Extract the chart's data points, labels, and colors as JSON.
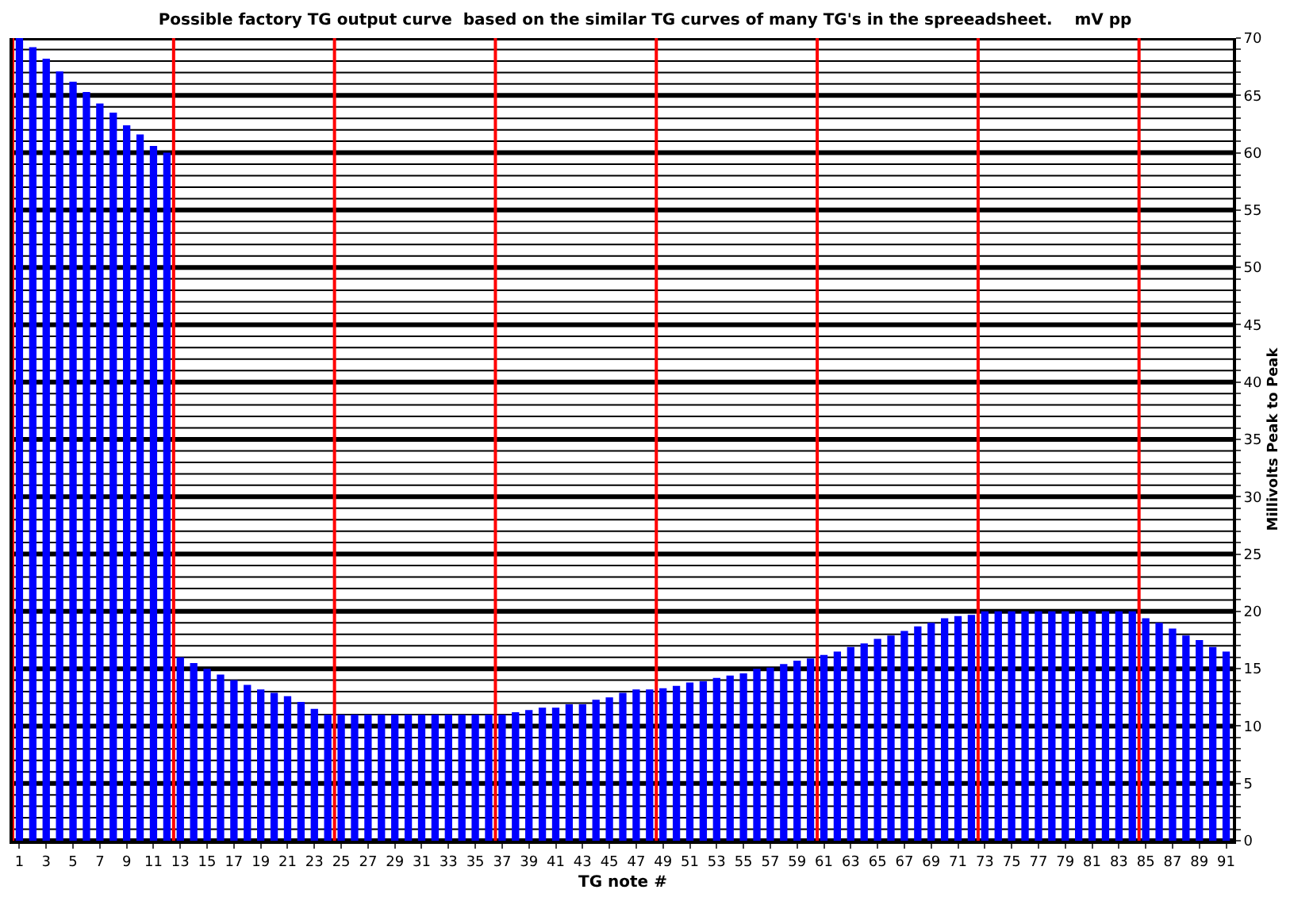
{
  "chart_data": {
    "type": "bar",
    "title": "Possible factory TG output curve  based on the similar TG curves of many TG's in the spreeadsheet.    mV pp",
    "xlabel": "TG note #",
    "ylabel": "Millivolts Peak to Peak",
    "x": [
      1,
      2,
      3,
      4,
      5,
      6,
      7,
      8,
      9,
      10,
      11,
      12,
      13,
      14,
      15,
      16,
      17,
      18,
      19,
      20,
      21,
      22,
      23,
      24,
      25,
      26,
      27,
      28,
      29,
      30,
      31,
      32,
      33,
      34,
      35,
      36,
      37,
      38,
      39,
      40,
      41,
      42,
      43,
      44,
      45,
      46,
      47,
      48,
      49,
      50,
      51,
      52,
      53,
      54,
      55,
      56,
      57,
      58,
      59,
      60,
      61,
      62,
      63,
      64,
      65,
      66,
      67,
      68,
      69,
      70,
      71,
      72,
      73,
      74,
      75,
      76,
      77,
      78,
      79,
      80,
      81,
      82,
      83,
      84,
      85,
      86,
      87,
      88,
      89,
      90,
      91
    ],
    "series": [
      {
        "color": "#0000ff",
        "values": [
          70,
          69.2,
          68.2,
          67.1,
          66.2,
          65.3,
          64.3,
          63.5,
          62.4,
          61.6,
          60.6,
          60,
          16,
          15.5,
          15,
          14.5,
          14,
          13.6,
          13.2,
          12.9,
          12.6,
          12.1,
          11.5,
          11,
          11,
          11,
          11,
          11,
          11,
          11,
          11,
          11,
          11,
          11,
          11,
          11,
          11,
          11.2,
          11.4,
          11.6,
          11.6,
          11.9,
          11.9,
          12.3,
          12.5,
          12.9,
          13.2,
          13.2,
          13.3,
          13.5,
          13.8,
          13.9,
          14.2,
          14.4,
          14.6,
          15,
          15.1,
          15.4,
          15.7,
          15.9,
          16.2,
          16.5,
          16.9,
          17.2,
          17.6,
          17.9,
          18.3,
          18.7,
          19,
          19.4,
          19.6,
          19.7,
          20,
          20,
          20,
          20,
          20,
          20,
          20,
          20,
          20,
          20,
          20,
          20,
          19.4,
          19,
          18.5,
          17.9,
          17.5,
          16.9,
          16.5
        ]
      }
    ],
    "xlim": [
      0.5,
      91.5
    ],
    "xticks": [
      1,
      3,
      5,
      7,
      9,
      11,
      13,
      15,
      17,
      19,
      21,
      23,
      25,
      27,
      29,
      31,
      33,
      35,
      37,
      39,
      41,
      43,
      45,
      47,
      49,
      51,
      53,
      55,
      57,
      59,
      61,
      63,
      65,
      67,
      69,
      71,
      73,
      75,
      77,
      79,
      81,
      83,
      85,
      87,
      89,
      91
    ],
    "ylim": [
      0,
      70
    ],
    "yticks": [
      0,
      {
        "value": 1,
        "label": null
      },
      {
        "value": 2,
        "label": null
      },
      {
        "value": 3,
        "label": null
      },
      {
        "value": 4,
        "label": null
      },
      5,
      {
        "value": 6,
        "label": null
      },
      {
        "value": 7,
        "label": null
      },
      {
        "value": 8,
        "label": null
      },
      {
        "value": 9,
        "label": null
      },
      10,
      {
        "value": 11,
        "label": null
      },
      {
        "value": 12,
        "label": null
      },
      {
        "value": 13,
        "label": null
      },
      {
        "value": 14,
        "label": null
      },
      15,
      {
        "value": 16,
        "label": null
      },
      {
        "value": 17,
        "label": null
      },
      {
        "value": 18,
        "label": null
      },
      {
        "value": 19,
        "label": null
      },
      20,
      {
        "value": 21,
        "label": null
      },
      {
        "value": 22,
        "label": null
      },
      {
        "value": 23,
        "label": null
      },
      {
        "value": 24,
        "label": null
      },
      25,
      {
        "value": 26,
        "label": null
      },
      {
        "value": 27,
        "label": null
      },
      {
        "value": 28,
        "label": null
      },
      {
        "value": 29,
        "label": null
      },
      30,
      {
        "value": 31,
        "label": null
      },
      {
        "value": 32,
        "label": null
      },
      {
        "value": 33,
        "label": null
      },
      {
        "value": 34,
        "label": null
      },
      35,
      {
        "value": 36,
        "label": null
      },
      {
        "value": 37,
        "label": null
      },
      {
        "value": 38,
        "label": null
      },
      {
        "value": 39,
        "label": null
      },
      40,
      {
        "value": 41,
        "label": null
      },
      {
        "value": 42,
        "label": null
      },
      {
        "value": 43,
        "label": null
      },
      {
        "value": 44,
        "label": null
      },
      45,
      {
        "value": 46,
        "label": null
      },
      {
        "value": 47,
        "label": null
      },
      {
        "value": 48,
        "label": null
      },
      {
        "value": 49,
        "label": null
      },
      50,
      {
        "value": 51,
        "label": null
      },
      {
        "value": 52,
        "label": null
      },
      {
        "value": 53,
        "label": null
      },
      {
        "value": 54,
        "label": null
      },
      55,
      {
        "value": 56,
        "label": null
      },
      {
        "value": 57,
        "label": null
      },
      {
        "value": 58,
        "label": null
      },
      {
        "value": 59,
        "label": null
      },
      60,
      {
        "value": 61,
        "label": null
      },
      {
        "value": 62,
        "label": null
      },
      {
        "value": 63,
        "label": null
      },
      {
        "value": 64,
        "label": null
      },
      65,
      {
        "value": 66,
        "label": null
      },
      {
        "value": 67,
        "label": null
      },
      {
        "value": 68,
        "label": null
      },
      {
        "value": 69,
        "label": null
      },
      70
    ],
    "grid": "y",
    "legend": false,
    "ref_lines": [
      {
        "axis": "x",
        "value": 0.5,
        "color": "#ff0000"
      },
      {
        "axis": "x",
        "value": 12.5,
        "color": "#ff0000"
      },
      {
        "axis": "x",
        "value": 24.5,
        "color": "#ff0000"
      },
      {
        "axis": "x",
        "value": 36.5,
        "color": "#ff0000"
      },
      {
        "axis": "x",
        "value": 48.5,
        "color": "#ff0000"
      },
      {
        "axis": "x",
        "value": 60.5,
        "color": "#ff0000"
      },
      {
        "axis": "x",
        "value": 72.5,
        "color": "#ff0000"
      },
      {
        "axis": "x",
        "value": 84.5,
        "color": "#ff0000"
      }
    ]
  }
}
